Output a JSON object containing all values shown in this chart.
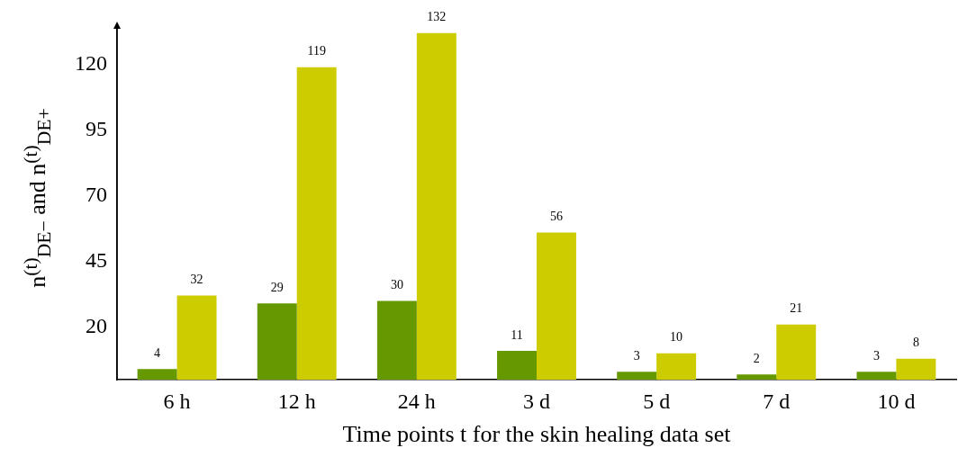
{
  "chart_data": {
    "type": "bar",
    "xlabel": "Time points t for the skin healing data set",
    "ylabel": "n$^{(t)}$$_{DE−}$ and n$^{(t)}$$_{DE+}$",
    "categories": [
      "6 h",
      "12 h",
      "24 h",
      "3 d",
      "5 d",
      "7 d",
      "10 d"
    ],
    "series": [
      {
        "color": "#669900",
        "values": [
          4,
          29,
          30,
          11,
          3,
          2,
          3
        ]
      },
      {
        "color": "#cccc00",
        "values": [
          32,
          119,
          132,
          56,
          10,
          21,
          8
        ]
      }
    ],
    "ylim": [
      0,
      135
    ],
    "yticks": [
      20,
      45,
      70,
      95,
      120
    ],
    "data_labels": true,
    "grid": false,
    "legend": false
  }
}
